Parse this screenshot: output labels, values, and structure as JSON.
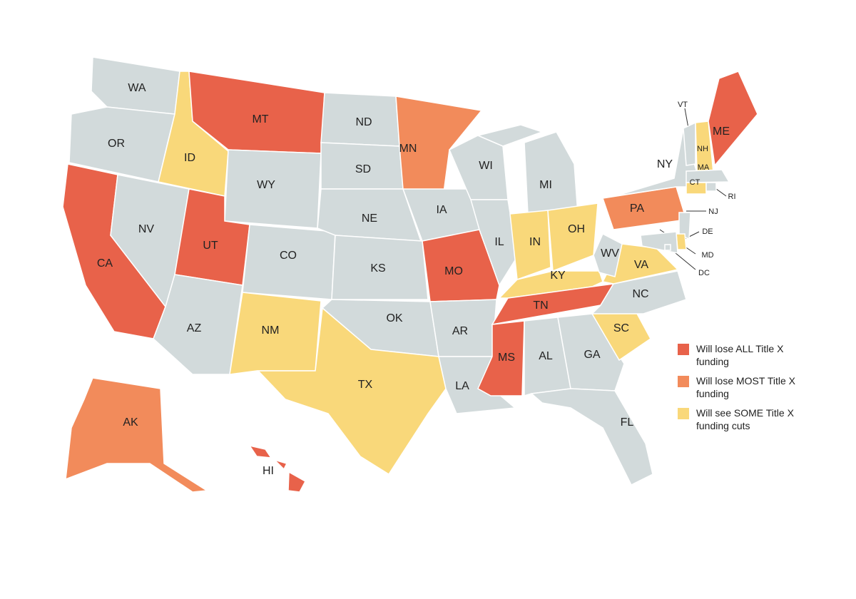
{
  "legend": [
    {
      "label": "Will lose ALL Title X funding",
      "color": "#e8624a"
    },
    {
      "label": "Will lose MOST Title X funding",
      "color": "#f28b5b"
    },
    {
      "label": "Will see SOME Title X funding cuts",
      "color": "#f9d87a"
    }
  ],
  "states": [
    {
      "label": "WA",
      "color": "#d2dadb"
    },
    {
      "label": "OR",
      "color": "#d2dadb"
    },
    {
      "label": "CA",
      "color": "#e8624a"
    },
    {
      "label": "NV",
      "color": "#d2dadb"
    },
    {
      "label": "ID",
      "color": "#f9d87a"
    },
    {
      "label": "MT",
      "color": "#e8624a"
    },
    {
      "label": "WY",
      "color": "#d2dadb"
    },
    {
      "label": "UT",
      "color": "#e8624a"
    },
    {
      "label": "AZ",
      "color": "#d2dadb"
    },
    {
      "label": "CO",
      "color": "#d2dadb"
    },
    {
      "label": "NM",
      "color": "#f9d87a"
    },
    {
      "label": "ND",
      "color": "#d2dadb"
    },
    {
      "label": "SD",
      "color": "#d2dadb"
    },
    {
      "label": "NE",
      "color": "#d2dadb"
    },
    {
      "label": "KS",
      "color": "#d2dadb"
    },
    {
      "label": "OK",
      "color": "#d2dadb"
    },
    {
      "label": "TX",
      "color": "#f9d87a"
    },
    {
      "label": "MN",
      "color": "#f28b5b"
    },
    {
      "label": "IA",
      "color": "#d2dadb"
    },
    {
      "label": "MO",
      "color": "#e8624a"
    },
    {
      "label": "AR",
      "color": "#d2dadb"
    },
    {
      "label": "LA",
      "color": "#d2dadb"
    },
    {
      "label": "WI",
      "color": "#d2dadb"
    },
    {
      "label": "IL",
      "color": "#d2dadb"
    },
    {
      "label": "MI",
      "color": "#d2dadb"
    },
    {
      "label": "IN",
      "color": "#f9d87a"
    },
    {
      "label": "OH",
      "color": "#f9d87a"
    },
    {
      "label": "KY",
      "color": "#f9d87a"
    },
    {
      "label": "TN",
      "color": "#e8624a"
    },
    {
      "label": "MS",
      "color": "#e8624a"
    },
    {
      "label": "AL",
      "color": "#d2dadb"
    },
    {
      "label": "GA",
      "color": "#d2dadb"
    },
    {
      "label": "FL",
      "color": "#d2dadb"
    },
    {
      "label": "SC",
      "color": "#f9d87a"
    },
    {
      "label": "NC",
      "color": "#d2dadb"
    },
    {
      "label": "VA",
      "color": "#f9d87a"
    },
    {
      "label": "WV",
      "color": "#d2dadb"
    },
    {
      "label": "PA",
      "color": "#f28b5b"
    },
    {
      "label": "NY",
      "color": "#d2dadb"
    },
    {
      "label": "VT",
      "color": "#d2dadb"
    },
    {
      "label": "NH",
      "color": "#f9d87a"
    },
    {
      "label": "ME",
      "color": "#e8624a"
    },
    {
      "label": "MA",
      "color": "#d2dadb"
    },
    {
      "label": "CT",
      "color": "#f9d87a"
    },
    {
      "label": "RI",
      "color": "#d2dadb"
    },
    {
      "label": "NJ",
      "color": "#d2dadb"
    },
    {
      "label": "DE",
      "color": "#f9d87a"
    },
    {
      "label": "MD",
      "color": "#d2dadb"
    },
    {
      "label": "DC",
      "color": "#d2dadb"
    },
    {
      "label": "AK",
      "color": "#f28b5b"
    },
    {
      "label": "HI",
      "color": "#e8624a"
    }
  ]
}
